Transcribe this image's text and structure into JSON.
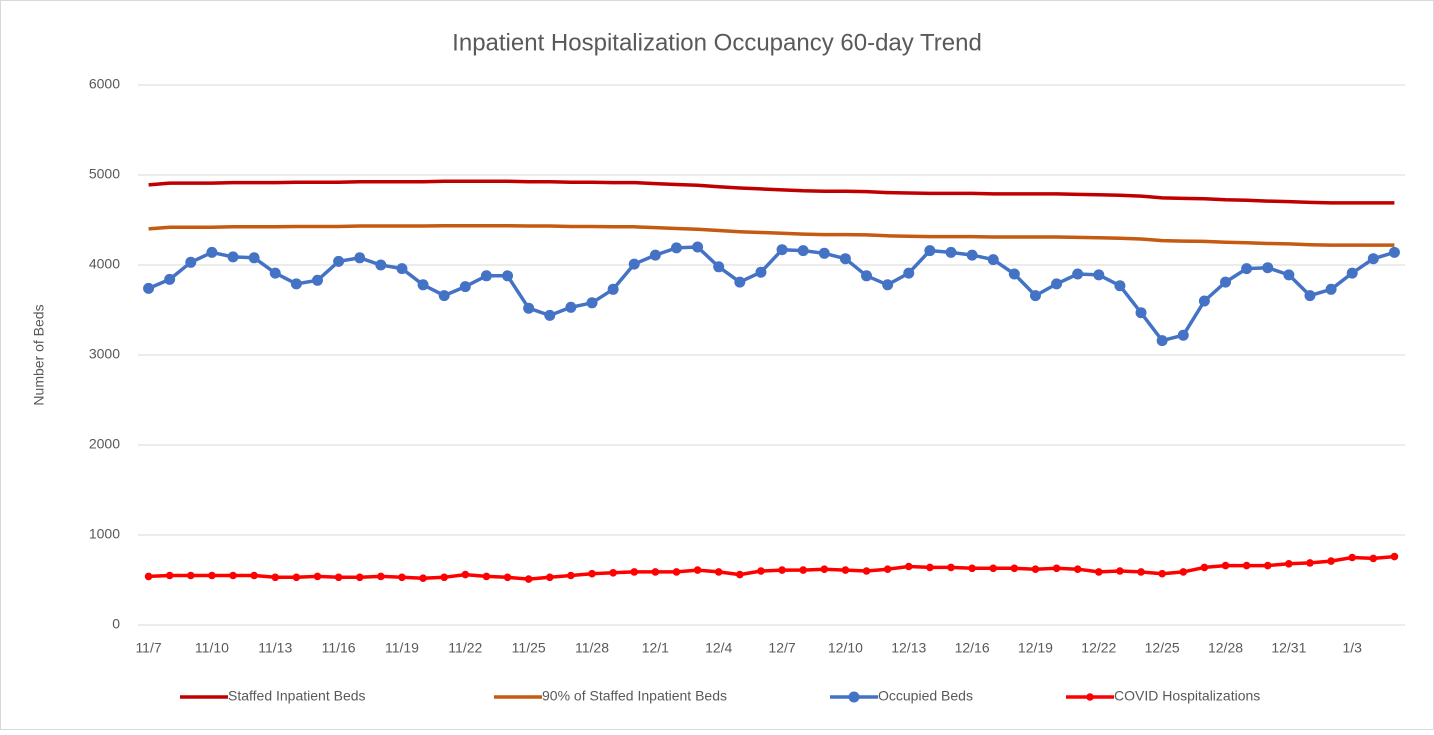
{
  "chart_data": {
    "type": "line",
    "title": "Inpatient Hospitalization Occupancy 60-day Trend",
    "y_label": "Number of Beds",
    "categories": [
      "11/7",
      null,
      null,
      "11/10",
      null,
      null,
      "11/13",
      null,
      null,
      "11/16",
      null,
      null,
      "11/19",
      null,
      null,
      "11/22",
      null,
      null,
      "11/25",
      null,
      null,
      "11/28",
      null,
      null,
      "12/1",
      null,
      null,
      "12/4",
      null,
      null,
      "12/7",
      null,
      null,
      "12/10",
      null,
      null,
      "12/13",
      null,
      null,
      "12/16",
      null,
      null,
      "12/19",
      null,
      null,
      "12/22",
      null,
      null,
      "12/25",
      null,
      null,
      "12/28",
      null,
      null,
      "12/31",
      null,
      null,
      "1/3",
      null,
      null
    ],
    "series": [
      {
        "name": "Staffed Inpatient Beds",
        "color": "#c00000",
        "marker": false,
        "values": [
          4890,
          4910,
          4910,
          4910,
          4915,
          4915,
          4915,
          4920,
          4920,
          4920,
          4925,
          4925,
          4925,
          4925,
          4930,
          4930,
          4930,
          4930,
          4925,
          4925,
          4920,
          4920,
          4915,
          4915,
          4905,
          4895,
          4885,
          4870,
          4855,
          4845,
          4835,
          4825,
          4820,
          4820,
          4815,
          4805,
          4800,
          4795,
          4795,
          4795,
          4790,
          4790,
          4790,
          4790,
          4785,
          4780,
          4775,
          4765,
          4745,
          4740,
          4735,
          4725,
          4720,
          4710,
          4705,
          4695,
          4690,
          4690,
          4690,
          4690
        ]
      },
      {
        "name": "90% of Staffed Inpatient Beds",
        "color": "#c55a11",
        "marker": false,
        "values": [
          4401,
          4419,
          4419,
          4419,
          4424,
          4424,
          4424,
          4428,
          4428,
          4428,
          4433,
          4433,
          4433,
          4433,
          4437,
          4437,
          4437,
          4437,
          4433,
          4433,
          4428,
          4428,
          4424,
          4424,
          4415,
          4406,
          4397,
          4383,
          4370,
          4361,
          4352,
          4343,
          4338,
          4338,
          4334,
          4325,
          4320,
          4316,
          4316,
          4316,
          4311,
          4311,
          4311,
          4311,
          4307,
          4302,
          4298,
          4289,
          4271,
          4266,
          4262,
          4253,
          4248,
          4239,
          4235,
          4226,
          4221,
          4221,
          4221,
          4221
        ]
      },
      {
        "name": "Occupied Beds",
        "color": "#4472c4",
        "marker": true,
        "values": [
          3740,
          3840,
          4030,
          4140,
          4090,
          4080,
          3910,
          3790,
          3830,
          4040,
          4080,
          4000,
          3960,
          3780,
          3660,
          3760,
          3880,
          3880,
          3520,
          3440,
          3530,
          3580,
          3730,
          4010,
          4110,
          4190,
          4200,
          3980,
          3810,
          3920,
          4170,
          4160,
          4130,
          4070,
          3880,
          3780,
          3910,
          4160,
          4140,
          4110,
          4060,
          3900,
          3660,
          3790,
          3900,
          3890,
          3770,
          3470,
          3160,
          3220,
          3600,
          3810,
          3960,
          3970,
          3890,
          3660,
          3730,
          3910,
          4070,
          4140
        ]
      },
      {
        "name": "COVID Hospitalizations",
        "color": "#ff0000",
        "marker": true,
        "values": [
          540,
          550,
          550,
          550,
          550,
          550,
          530,
          530,
          540,
          530,
          530,
          540,
          530,
          520,
          530,
          560,
          540,
          530,
          510,
          530,
          550,
          570,
          580,
          590,
          590,
          590,
          610,
          590,
          560,
          600,
          610,
          610,
          620,
          610,
          600,
          620,
          650,
          640,
          640,
          630,
          630,
          630,
          620,
          630,
          620,
          590,
          600,
          590,
          570,
          590,
          640,
          660,
          660,
          660,
          680,
          690,
          710,
          750,
          740,
          760
        ]
      }
    ],
    "ylim": [
      0,
      6000
    ],
    "yticks": [
      0,
      1000,
      2000,
      3000,
      4000,
      5000,
      6000
    ],
    "grid": true,
    "legend": "bottom"
  }
}
